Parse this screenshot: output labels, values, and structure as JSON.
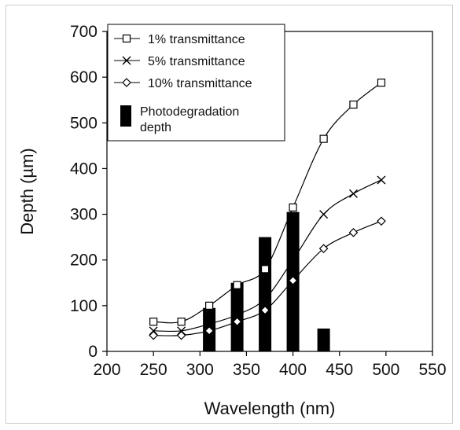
{
  "chart_data": {
    "type": "line",
    "title": "",
    "xlabel": "Wavelength (nm)",
    "ylabel": "Depth (µm)",
    "xlim": [
      200,
      550
    ],
    "ylim": [
      0,
      700
    ],
    "x_ticks": [
      "200",
      "250",
      "300",
      "350",
      "400",
      "450",
      "500",
      "550"
    ],
    "y_ticks": [
      "0",
      "100",
      "200",
      "300",
      "400",
      "500",
      "600",
      "700"
    ],
    "grid": false,
    "legend_position": "top-left",
    "series": [
      {
        "name": "1% transmittance",
        "marker": "square",
        "color": "#000000",
        "x": [
          250,
          280,
          310,
          340,
          370,
          400,
          433,
          465,
          495
        ],
        "y": [
          65,
          65,
          100,
          145,
          180,
          315,
          465,
          540,
          588
        ]
      },
      {
        "name": "5% transmittance",
        "marker": "x",
        "color": "#000000",
        "x": [
          250,
          280,
          310,
          340,
          370,
          400,
          433,
          465,
          495
        ],
        "y": [
          45,
          45,
          60,
          80,
          115,
          200,
          300,
          345,
          375
        ]
      },
      {
        "name": "10% transmittance",
        "marker": "diamond",
        "color": "#000000",
        "x": [
          250,
          280,
          310,
          340,
          370,
          400,
          433,
          465,
          495
        ],
        "y": [
          35,
          35,
          45,
          65,
          90,
          155,
          225,
          260,
          285
        ]
      }
    ],
    "bars": {
      "name": "Photodegradation depth",
      "color": "#000000",
      "x": [
        310,
        340,
        370,
        400,
        433
      ],
      "values": [
        95,
        150,
        250,
        305,
        50
      ]
    }
  }
}
